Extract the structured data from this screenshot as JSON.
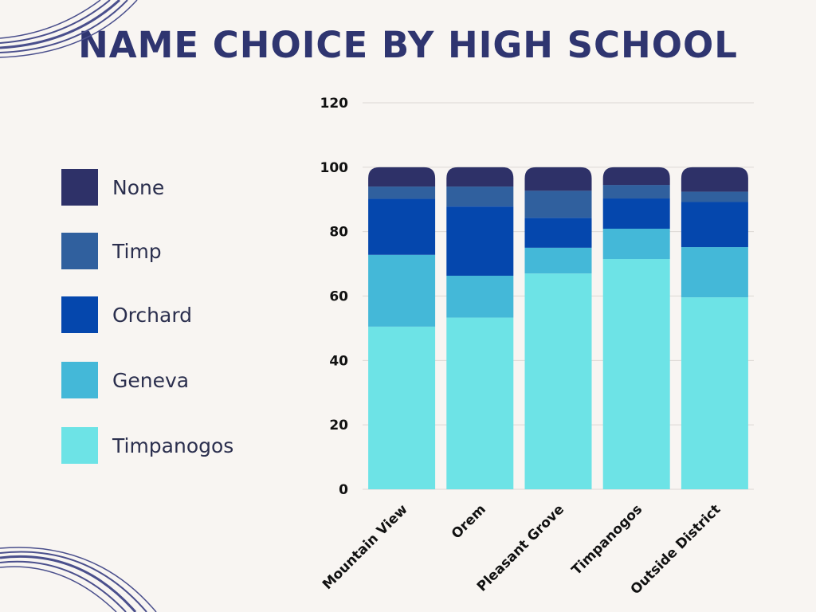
{
  "chart_data": {
    "type": "bar",
    "stacked": true,
    "title": "NAME CHOICE BY HIGH SCHOOL",
    "xlabel": "",
    "ylabel": "",
    "ylim": [
      0,
      120
    ],
    "yticks": [
      0,
      20,
      40,
      60,
      80,
      100,
      120
    ],
    "grid": true,
    "legend_position": "left",
    "categories": [
      "Mountain View",
      "Orem",
      "Pleasant Grove",
      "Timpanogos",
      "Outside District"
    ],
    "series": [
      {
        "name": "Timpanogos",
        "color": "#6de3e6",
        "values": [
          50.5,
          53.3,
          67,
          71.5,
          59.6
        ]
      },
      {
        "name": "Geneva",
        "color": "#44b8d8",
        "values": [
          22.3,
          13,
          8,
          9.4,
          15.6
        ]
      },
      {
        "name": "Orchard",
        "color": "#0547ad",
        "values": [
          17.4,
          21.5,
          9.3,
          9.4,
          14
        ]
      },
      {
        "name": "Timp",
        "color": "#30609e",
        "values": [
          3.8,
          6.2,
          8.4,
          4.2,
          3.2
        ]
      },
      {
        "name": "None",
        "color": "#2e3168",
        "values": [
          6,
          6,
          7.3,
          5.5,
          7.6
        ]
      }
    ]
  },
  "legend": {
    "items": [
      {
        "label": "None",
        "color": "#2e3168"
      },
      {
        "label": "Timp",
        "color": "#30609e"
      },
      {
        "label": "Orchard",
        "color": "#0547ad"
      },
      {
        "label": "Geneva",
        "color": "#44b8d8"
      },
      {
        "label": "Timpanogos",
        "color": "#6de3e6"
      }
    ]
  },
  "decor": {
    "swirl_color": "#4a4f8c"
  }
}
